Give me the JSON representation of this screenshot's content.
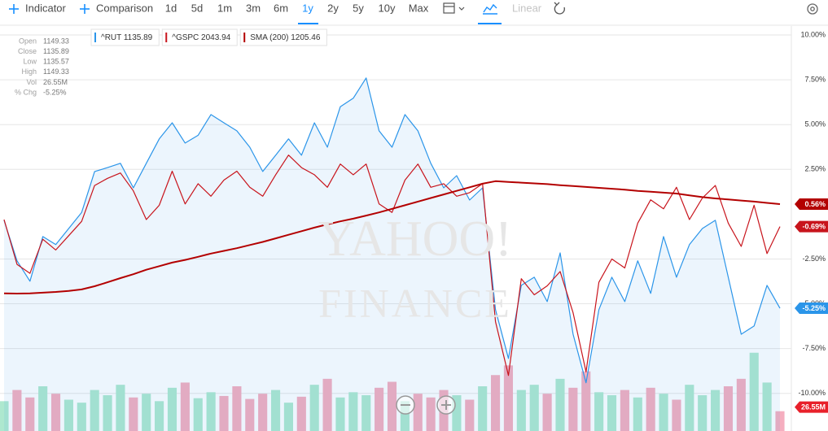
{
  "toolbar": {
    "indicator": "Indicator",
    "comparison": "Comparison",
    "ranges": [
      "1d",
      "5d",
      "1m",
      "3m",
      "6m",
      "1y",
      "2y",
      "5y",
      "10y",
      "Max"
    ],
    "scale": "Linear"
  },
  "chart_data": {
    "type": "line",
    "watermark": [
      "YAHOO!",
      "FINANCE"
    ],
    "info": [
      {
        "label": "Open",
        "value": "1149.33"
      },
      {
        "label": "Close",
        "value": "1135.89"
      },
      {
        "label": "Low",
        "value": "1135.57"
      },
      {
        "label": "High",
        "value": "1149.33"
      },
      {
        "label": "Vol",
        "value": "26.55M"
      },
      {
        "label": "% Chg",
        "value": "-5.25%"
      }
    ],
    "ylim": [
      -12.1,
      10.5
    ],
    "yticks": [
      {
        "value": 10,
        "label": "10.00%"
      },
      {
        "value": 7.5,
        "label": "7.50%"
      },
      {
        "value": 5,
        "label": "5.00%"
      },
      {
        "value": 2.5,
        "label": "2.50%"
      },
      {
        "value": -2.5,
        "label": "-2.50%"
      },
      {
        "value": -5,
        "label": "-5.00%"
      },
      {
        "value": -7.5,
        "label": "-7.50%"
      },
      {
        "value": -10,
        "label": "-10.00%"
      }
    ],
    "grid": true,
    "series": [
      {
        "name": "^RUT 1135.89",
        "color": "#2b95e9",
        "area": true,
        "last_label": "-5.25%",
        "values": [
          -0.34,
          -2.6,
          -3.74,
          -1.25,
          -1.7,
          -0.8,
          0.1,
          2.38,
          2.6,
          2.84,
          1.47,
          2.84,
          4.2,
          5.1,
          3.97,
          4.4,
          5.56,
          5.1,
          4.65,
          3.74,
          2.38,
          3.29,
          4.2,
          3.29,
          5.1,
          3.74,
          6.0,
          6.47,
          7.6,
          4.65,
          3.74,
          5.56,
          4.65,
          2.84,
          1.47,
          2.15,
          0.79,
          1.47,
          -5.33,
          -8.05,
          -3.97,
          -3.52,
          -4.88,
          -2.16,
          -6.7,
          -9.41,
          -5.33,
          -3.52,
          -4.88,
          -2.6,
          -4.42,
          -1.25,
          -3.52,
          -1.7,
          -0.8,
          -0.34,
          -3.52,
          -6.7,
          -6.24,
          -3.97,
          -5.25
        ]
      },
      {
        "name": "^GSPC 2043.94",
        "color": "#c8141c",
        "area": false,
        "last_label": "-0.69%",
        "values": [
          -0.3,
          -2.8,
          -3.3,
          -1.4,
          -2.0,
          -1.2,
          -0.4,
          1.6,
          2.0,
          2.3,
          1.3,
          -0.3,
          0.5,
          2.4,
          0.57,
          1.7,
          1.0,
          1.9,
          2.4,
          1.5,
          1.0,
          2.2,
          3.3,
          2.6,
          2.2,
          1.5,
          2.8,
          2.2,
          2.8,
          0.57,
          0.1,
          1.9,
          2.8,
          1.5,
          1.7,
          1.0,
          1.2,
          1.7,
          -6.0,
          -9.0,
          -3.6,
          -4.5,
          -4.0,
          -3.2,
          -5.5,
          -8.8,
          -3.8,
          -2.5,
          -3.0,
          -0.5,
          0.8,
          0.3,
          1.5,
          -0.3,
          0.9,
          1.6,
          -0.5,
          -1.8,
          0.5,
          -2.2,
          -0.69
        ]
      },
      {
        "name": "SMA (200) 1205.46",
        "color": "#b30000",
        "area": false,
        "last_label": "0.56%",
        "values": [
          -4.42,
          -4.43,
          -4.42,
          -4.38,
          -4.34,
          -4.28,
          -4.2,
          -4.02,
          -3.8,
          -3.57,
          -3.35,
          -3.1,
          -2.9,
          -2.7,
          -2.55,
          -2.38,
          -2.2,
          -2.05,
          -1.9,
          -1.72,
          -1.55,
          -1.35,
          -1.15,
          -0.95,
          -0.75,
          -0.57,
          -0.4,
          -0.25,
          -0.08,
          0.1,
          0.3,
          0.5,
          0.7,
          0.9,
          1.1,
          1.3,
          1.5,
          1.7,
          1.84,
          1.8,
          1.76,
          1.72,
          1.68,
          1.62,
          1.57,
          1.52,
          1.47,
          1.42,
          1.37,
          1.3,
          1.25,
          1.2,
          1.15,
          1.05,
          0.95,
          0.88,
          0.82,
          0.76,
          0.7,
          0.63,
          0.56
        ]
      }
    ],
    "volume": {
      "ylim": [
        0,
        120
      ],
      "up_color": "#aee8cf",
      "down_color": "#f5aebf",
      "badge_color": "#e8202a",
      "last_label": "26.55M",
      "values": [
        40,
        55,
        45,
        60,
        50,
        42,
        38,
        55,
        48,
        62,
        45,
        50,
        40,
        58,
        65,
        44,
        52,
        47,
        60,
        43,
        50,
        55,
        38,
        46,
        62,
        70,
        45,
        52,
        48,
        58,
        66,
        40,
        50,
        45,
        55,
        48,
        42,
        60,
        75,
        88,
        55,
        62,
        50,
        70,
        58,
        80,
        52,
        48,
        55,
        45,
        58,
        50,
        42,
        62,
        48,
        55,
        60,
        70,
        105,
        65,
        26.55
      ]
    }
  }
}
